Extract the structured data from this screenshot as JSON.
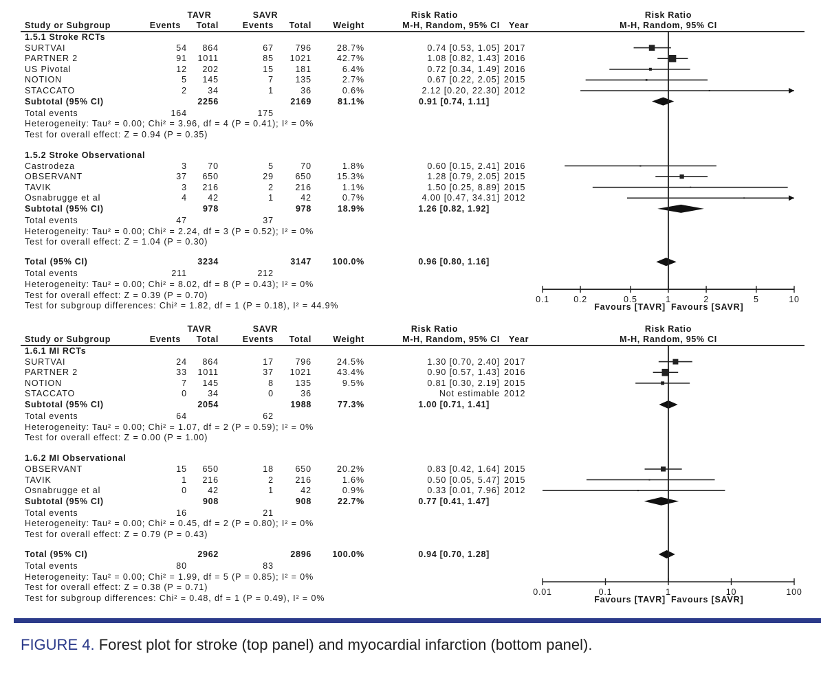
{
  "caption": {
    "label": "FIGURE 4.",
    "text": " Forest plot for stroke (top panel) and myocardial infarction (bottom panel)."
  },
  "colors": {
    "caption_accent": "#2b3a8a",
    "marks": "#111111"
  },
  "chart_data": [
    {
      "type": "scatter",
      "title": "",
      "columns": {
        "group1": "TAVR",
        "group2": "SAVR",
        "study": "Study or Subgroup",
        "events": "Events",
        "total": "Total",
        "weight": "Weight",
        "rr_title": "Risk Ratio",
        "rr_method": "M-H, Random, 95% CI",
        "year": "Year"
      },
      "x_scale": "log",
      "xlim": [
        0.1,
        10
      ],
      "axis": {
        "ticks": [
          "0.1",
          "0.2",
          "0.5",
          "1",
          "2",
          "5",
          "10"
        ],
        "tick_values": [
          0.1,
          0.2,
          0.5,
          1,
          2,
          5,
          10
        ],
        "favours_left": "Favours [TAVR]",
        "favours_right": "Favours [SAVR]"
      },
      "groups": [
        {
          "title": "1.5.1 Stroke RCTs",
          "studies": [
            {
              "name": "SURTVAI",
              "tavr_events": "54",
              "tavr_total": "864",
              "savr_events": "67",
              "savr_total": "796",
              "weight": "28.7%",
              "weight_value": 28.7,
              "rr": 0.74,
              "lo": 0.53,
              "hi": 1.05,
              "rr_text": "0.74 [0.53, 1.05]",
              "year": "2017"
            },
            {
              "name": "PARTNER 2",
              "tavr_events": "91",
              "tavr_total": "1011",
              "savr_events": "85",
              "savr_total": "1021",
              "weight": "42.7%",
              "weight_value": 42.7,
              "rr": 1.08,
              "lo": 0.82,
              "hi": 1.43,
              "rr_text": "1.08 [0.82, 1.43]",
              "year": "2016"
            },
            {
              "name": "US Pivotal",
              "tavr_events": "12",
              "tavr_total": "202",
              "savr_events": "15",
              "savr_total": "181",
              "weight": "6.4%",
              "weight_value": 6.4,
              "rr": 0.72,
              "lo": 0.34,
              "hi": 1.49,
              "rr_text": "0.72 [0.34, 1.49]",
              "year": "2016"
            },
            {
              "name": "NOTION",
              "tavr_events": "5",
              "tavr_total": "145",
              "savr_events": "7",
              "savr_total": "135",
              "weight": "2.7%",
              "weight_value": 2.7,
              "rr": 0.67,
              "lo": 0.22,
              "hi": 2.05,
              "rr_text": "0.67 [0.22, 2.05]",
              "year": "2015"
            },
            {
              "name": "STACCATO",
              "tavr_events": "2",
              "tavr_total": "34",
              "savr_events": "1",
              "savr_total": "36",
              "weight": "0.6%",
              "weight_value": 0.6,
              "rr": 2.12,
              "lo": 0.2,
              "hi": 22.3,
              "rr_text": "2.12 [0.20, 22.30]",
              "year": "2012"
            }
          ],
          "subtotal": {
            "label": "Subtotal (95% CI)",
            "tavr_total": "2256",
            "savr_total": "2169",
            "weight": "81.1%",
            "rr": 0.91,
            "lo": 0.74,
            "hi": 1.11,
            "rr_text": "0.91 [0.74, 1.11]"
          },
          "total_events": {
            "label": "Total events",
            "tavr": "164",
            "savr": "175"
          },
          "heterogeneity": "Heterogeneity: Tau² = 0.00; Chi² = 3.96, df = 4 (P = 0.41); I² = 0%",
          "overall_effect": "Test for overall effect: Z = 0.94 (P = 0.35)"
        },
        {
          "title": "1.5.2 Stroke Observational",
          "studies": [
            {
              "name": "Castrodeza",
              "tavr_events": "3",
              "tavr_total": "70",
              "savr_events": "5",
              "savr_total": "70",
              "weight": "1.8%",
              "weight_value": 1.8,
              "rr": 0.6,
              "lo": 0.15,
              "hi": 2.41,
              "rr_text": "0.60 [0.15, 2.41]",
              "year": "2016"
            },
            {
              "name": "OBSERVANT",
              "tavr_events": "37",
              "tavr_total": "650",
              "savr_events": "29",
              "savr_total": "650",
              "weight": "15.3%",
              "weight_value": 15.3,
              "rr": 1.28,
              "lo": 0.79,
              "hi": 2.05,
              "rr_text": "1.28 [0.79, 2.05]",
              "year": "2015"
            },
            {
              "name": "TAVIK",
              "tavr_events": "3",
              "tavr_total": "216",
              "savr_events": "2",
              "savr_total": "216",
              "weight": "1.1%",
              "weight_value": 1.1,
              "rr": 1.5,
              "lo": 0.25,
              "hi": 8.89,
              "rr_text": "1.50 [0.25, 8.89]",
              "year": "2015"
            },
            {
              "name": "Osnabrugge et al",
              "tavr_events": "4",
              "tavr_total": "42",
              "savr_events": "1",
              "savr_total": "42",
              "weight": "0.7%",
              "weight_value": 0.7,
              "rr": 4.0,
              "lo": 0.47,
              "hi": 34.31,
              "rr_text": "4.00 [0.47, 34.31]",
              "year": "2012"
            }
          ],
          "subtotal": {
            "label": "Subtotal (95% CI)",
            "tavr_total": "978",
            "savr_total": "978",
            "weight": "18.9%",
            "rr": 1.26,
            "lo": 0.82,
            "hi": 1.92,
            "rr_text": "1.26 [0.82, 1.92]"
          },
          "total_events": {
            "label": "Total events",
            "tavr": "47",
            "savr": "37"
          },
          "heterogeneity": "Heterogeneity: Tau² = 0.00; Chi² = 2.24, df = 3 (P = 0.52); I² = 0%",
          "overall_effect": "Test for overall effect: Z = 1.04 (P = 0.30)"
        }
      ],
      "total": {
        "label": "Total (95% CI)",
        "tavr_total": "3234",
        "savr_total": "3147",
        "weight": "100.0%",
        "rr": 0.96,
        "lo": 0.8,
        "hi": 1.16,
        "rr_text": "0.96 [0.80, 1.16]"
      },
      "total_events": {
        "label": "Total events",
        "tavr": "211",
        "savr": "212"
      },
      "heterogeneity": "Heterogeneity: Tau² = 0.00; Chi² = 8.02, df = 8 (P = 0.43); I² = 0%",
      "overall_effect": "Test for overall effect: Z = 0.39 (P = 0.70)",
      "subgroup_differences": "Test for subgroup differences: Chi² = 1.82, df = 1 (P = 0.18), I² = 44.9%"
    },
    {
      "type": "scatter",
      "title": "",
      "columns": {
        "group1": "TAVR",
        "group2": "SAVR",
        "study": "Study or Subgroup",
        "events": "Events",
        "total": "Total",
        "weight": "Weight",
        "rr_title": "Risk Ratio",
        "rr_method": "M-H, Random, 95% CI",
        "year": "Year"
      },
      "x_scale": "log",
      "xlim": [
        0.01,
        100
      ],
      "axis": {
        "ticks": [
          "0.01",
          "0.1",
          "1",
          "10",
          "100"
        ],
        "tick_values": [
          0.01,
          0.1,
          1,
          10,
          100
        ],
        "favours_left": "Favours [TAVR]",
        "favours_right": "Favours [SAVR]"
      },
      "groups": [
        {
          "title": "1.6.1 MI RCTs",
          "studies": [
            {
              "name": "SURTVAI",
              "tavr_events": "24",
              "tavr_total": "864",
              "savr_events": "17",
              "savr_total": "796",
              "weight": "24.5%",
              "weight_value": 24.5,
              "rr": 1.3,
              "lo": 0.7,
              "hi": 2.4,
              "rr_text": "1.30 [0.70, 2.40]",
              "year": "2017"
            },
            {
              "name": "PARTNER 2",
              "tavr_events": "33",
              "tavr_total": "1011",
              "savr_events": "37",
              "savr_total": "1021",
              "weight": "43.4%",
              "weight_value": 43.4,
              "rr": 0.9,
              "lo": 0.57,
              "hi": 1.43,
              "rr_text": "0.90 [0.57, 1.43]",
              "year": "2016"
            },
            {
              "name": "NOTION",
              "tavr_events": "7",
              "tavr_total": "145",
              "savr_events": "8",
              "savr_total": "135",
              "weight": "9.5%",
              "weight_value": 9.5,
              "rr": 0.81,
              "lo": 0.3,
              "hi": 2.19,
              "rr_text": "0.81 [0.30, 2.19]",
              "year": "2015"
            },
            {
              "name": "STACCATO",
              "tavr_events": "0",
              "tavr_total": "34",
              "savr_events": "0",
              "savr_total": "36",
              "weight": "",
              "weight_value": null,
              "rr": null,
              "lo": null,
              "hi": null,
              "rr_text": "Not estimable",
              "year": "2012"
            }
          ],
          "subtotal": {
            "label": "Subtotal (95% CI)",
            "tavr_total": "2054",
            "savr_total": "1988",
            "weight": "77.3%",
            "rr": 1.0,
            "lo": 0.71,
            "hi": 1.41,
            "rr_text": "1.00 [0.71, 1.41]"
          },
          "total_events": {
            "label": "Total events",
            "tavr": "64",
            "savr": "62"
          },
          "heterogeneity": "Heterogeneity: Tau² = 0.00; Chi² = 1.07, df = 2 (P = 0.59); I² = 0%",
          "overall_effect": "Test for overall effect: Z = 0.00 (P = 1.00)"
        },
        {
          "title": "1.6.2 MI Observational",
          "studies": [
            {
              "name": "OBSERVANT",
              "tavr_events": "15",
              "tavr_total": "650",
              "savr_events": "18",
              "savr_total": "650",
              "weight": "20.2%",
              "weight_value": 20.2,
              "rr": 0.83,
              "lo": 0.42,
              "hi": 1.64,
              "rr_text": "0.83 [0.42, 1.64]",
              "year": "2015"
            },
            {
              "name": "TAVIK",
              "tavr_events": "1",
              "tavr_total": "216",
              "savr_events": "2",
              "savr_total": "216",
              "weight": "1.6%",
              "weight_value": 1.6,
              "rr": 0.5,
              "lo": 0.05,
              "hi": 5.47,
              "rr_text": "0.50 [0.05, 5.47]",
              "year": "2015"
            },
            {
              "name": "Osnabrugge et al",
              "tavr_events": "0",
              "tavr_total": "42",
              "savr_events": "1",
              "savr_total": "42",
              "weight": "0.9%",
              "weight_value": 0.9,
              "rr": 0.33,
              "lo": 0.01,
              "hi": 7.96,
              "rr_text": "0.33 [0.01, 7.96]",
              "year": "2012"
            }
          ],
          "subtotal": {
            "label": "Subtotal (95% CI)",
            "tavr_total": "908",
            "savr_total": "908",
            "weight": "22.7%",
            "rr": 0.77,
            "lo": 0.41,
            "hi": 1.47,
            "rr_text": "0.77 [0.41, 1.47]"
          },
          "total_events": {
            "label": "Total events",
            "tavr": "16",
            "savr": "21"
          },
          "heterogeneity": "Heterogeneity: Tau² = 0.00; Chi² = 0.45, df = 2 (P = 0.80); I² = 0%",
          "overall_effect": "Test for overall effect: Z = 0.79 (P = 0.43)"
        }
      ],
      "total": {
        "label": "Total (95% CI)",
        "tavr_total": "2962",
        "savr_total": "2896",
        "weight": "100.0%",
        "rr": 0.94,
        "lo": 0.7,
        "hi": 1.28,
        "rr_text": "0.94 [0.70, 1.28]"
      },
      "total_events": {
        "label": "Total events",
        "tavr": "80",
        "savr": "83"
      },
      "heterogeneity": "Heterogeneity: Tau² = 0.00; Chi² = 1.99, df = 5 (P = 0.85); I² = 0%",
      "overall_effect": "Test for overall effect: Z = 0.38 (P = 0.71)",
      "subgroup_differences": "Test for subgroup differences: Chi² = 0.48, df = 1 (P = 0.49), I² = 0%"
    }
  ]
}
